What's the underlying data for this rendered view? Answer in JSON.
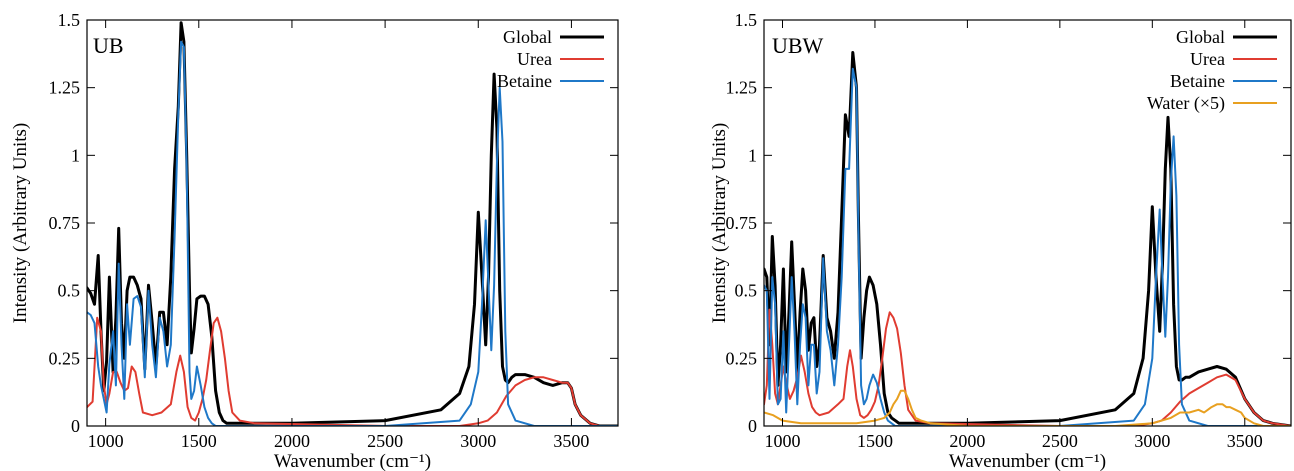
{
  "chart_data": [
    {
      "type": "line",
      "panel_label": "UB",
      "xlabel": "Wavenumber (cm⁻¹)",
      "ylabel": "Intensity (Arbitrary Units)",
      "xlim": [
        900,
        3750
      ],
      "ylim": [
        0,
        1.5
      ],
      "xticks": [
        1000,
        1500,
        2000,
        2500,
        3000,
        3500
      ],
      "xtick_labels": [
        "1000",
        "1500",
        "2000",
        "2500",
        "3000",
        "3500"
      ],
      "yticks": [
        0,
        0.25,
        0.5,
        0.75,
        1,
        1.25,
        1.5
      ],
      "ytick_labels": [
        "0",
        "0.25",
        "0.5",
        "0.75",
        "1",
        "1.25",
        "1.5"
      ],
      "legend_position": "top-right",
      "grid": false,
      "series": [
        {
          "name": "Global",
          "color": "#000000",
          "x": [
            900,
            920,
            940,
            960,
            975,
            990,
            1005,
            1020,
            1040,
            1055,
            1070,
            1085,
            1100,
            1115,
            1130,
            1150,
            1170,
            1190,
            1210,
            1230,
            1250,
            1270,
            1290,
            1310,
            1330,
            1350,
            1370,
            1390,
            1405,
            1420,
            1435,
            1450,
            1460,
            1475,
            1490,
            1510,
            1530,
            1550,
            1570,
            1590,
            1610,
            1630,
            1650,
            1670,
            1700,
            1750,
            1800,
            2000,
            2500,
            2800,
            2900,
            2950,
            2980,
            3000,
            3020,
            3040,
            3055,
            3070,
            3085,
            3100,
            3115,
            3130,
            3145,
            3160,
            3180,
            3200,
            3250,
            3300,
            3350,
            3400,
            3450,
            3480,
            3500,
            3520,
            3550,
            3600,
            3650,
            3750
          ],
          "y": [
            0.51,
            0.49,
            0.45,
            0.63,
            0.35,
            0.13,
            0.24,
            0.55,
            0.2,
            0.4,
            0.73,
            0.38,
            0.25,
            0.5,
            0.55,
            0.55,
            0.52,
            0.47,
            0.21,
            0.52,
            0.38,
            0.22,
            0.42,
            0.42,
            0.3,
            0.55,
            0.95,
            1.18,
            1.49,
            1.42,
            1.0,
            0.5,
            0.27,
            0.36,
            0.47,
            0.48,
            0.48,
            0.45,
            0.33,
            0.13,
            0.05,
            0.02,
            0.01,
            0.01,
            0.01,
            0.01,
            0.01,
            0.01,
            0.02,
            0.06,
            0.12,
            0.22,
            0.45,
            0.79,
            0.55,
            0.3,
            0.55,
            1.0,
            1.3,
            1.1,
            0.5,
            0.22,
            0.17,
            0.16,
            0.18,
            0.19,
            0.19,
            0.18,
            0.16,
            0.15,
            0.16,
            0.16,
            0.14,
            0.08,
            0.04,
            0.01,
            0.0,
            0.0
          ]
        },
        {
          "name": "Urea",
          "color": "#e03c31",
          "x": [
            900,
            930,
            955,
            975,
            990,
            1005,
            1020,
            1040,
            1060,
            1080,
            1100,
            1120,
            1140,
            1160,
            1180,
            1200,
            1250,
            1300,
            1350,
            1380,
            1400,
            1420,
            1440,
            1460,
            1480,
            1500,
            1520,
            1540,
            1560,
            1580,
            1600,
            1620,
            1640,
            1660,
            1680,
            1720,
            1800,
            2500,
            2900,
            3000,
            3050,
            3100,
            3150,
            3200,
            3250,
            3300,
            3350,
            3400,
            3450,
            3480,
            3500,
            3520,
            3550,
            3600,
            3650,
            3750
          ],
          "y": [
            0.07,
            0.09,
            0.4,
            0.35,
            0.15,
            0.08,
            0.12,
            0.2,
            0.2,
            0.16,
            0.13,
            0.14,
            0.22,
            0.2,
            0.12,
            0.05,
            0.04,
            0.05,
            0.08,
            0.2,
            0.26,
            0.2,
            0.07,
            0.03,
            0.02,
            0.05,
            0.1,
            0.17,
            0.28,
            0.38,
            0.4,
            0.35,
            0.25,
            0.13,
            0.05,
            0.02,
            0.01,
            0.0,
            0.0,
            0.01,
            0.02,
            0.05,
            0.11,
            0.15,
            0.17,
            0.18,
            0.18,
            0.17,
            0.16,
            0.16,
            0.14,
            0.08,
            0.04,
            0.01,
            0.0,
            0.0
          ]
        },
        {
          "name": "Betaine",
          "color": "#1f78c8",
          "x": [
            900,
            920,
            940,
            960,
            975,
            990,
            1005,
            1020,
            1040,
            1055,
            1070,
            1085,
            1100,
            1115,
            1130,
            1150,
            1170,
            1190,
            1210,
            1230,
            1250,
            1270,
            1290,
            1310,
            1330,
            1350,
            1370,
            1390,
            1405,
            1420,
            1435,
            1450,
            1460,
            1475,
            1490,
            1510,
            1530,
            1550,
            1570,
            1590,
            1610,
            1650,
            1700,
            1800,
            2500,
            2900,
            2960,
            3000,
            3020,
            3040,
            3055,
            3070,
            3085,
            3100,
            3115,
            3130,
            3145,
            3160,
            3200,
            3300,
            3750
          ],
          "y": [
            0.42,
            0.41,
            0.38,
            0.22,
            0.15,
            0.1,
            0.05,
            0.23,
            0.35,
            0.15,
            0.6,
            0.3,
            0.1,
            0.45,
            0.3,
            0.47,
            0.48,
            0.44,
            0.18,
            0.5,
            0.3,
            0.18,
            0.4,
            0.35,
            0.22,
            0.3,
            0.7,
            1.15,
            1.42,
            1.4,
            0.95,
            0.2,
            0.1,
            0.13,
            0.22,
            0.15,
            0.07,
            0.03,
            0.01,
            0.0,
            0.0,
            0.0,
            0.0,
            0.0,
            0.0,
            0.02,
            0.08,
            0.2,
            0.45,
            0.76,
            0.52,
            0.28,
            0.52,
            0.97,
            1.25,
            1.05,
            0.35,
            0.08,
            0.02,
            0.0,
            0.0
          ]
        }
      ]
    },
    {
      "type": "line",
      "panel_label": "UBW",
      "xlabel": "Wavenumber (cm⁻¹)",
      "ylabel": "Intensity (Arbitrary Units)",
      "xlim": [
        900,
        3750
      ],
      "ylim": [
        0,
        1.5
      ],
      "xticks": [
        1000,
        1500,
        2000,
        2500,
        3000,
        3500
      ],
      "xtick_labels": [
        "1000",
        "1500",
        "2000",
        "2500",
        "3000",
        "3500"
      ],
      "yticks": [
        0,
        0.25,
        0.5,
        0.75,
        1,
        1.25,
        1.5
      ],
      "ytick_labels": [
        "0",
        "0.25",
        "0.5",
        "0.75",
        "1",
        "1.25",
        "1.5"
      ],
      "legend_position": "top-right",
      "grid": false,
      "series": [
        {
          "name": "Global",
          "color": "#000000",
          "x": [
            900,
            915,
            930,
            945,
            960,
            975,
            990,
            1005,
            1020,
            1035,
            1050,
            1065,
            1080,
            1095,
            1110,
            1125,
            1140,
            1155,
            1170,
            1185,
            1200,
            1220,
            1240,
            1260,
            1280,
            1300,
            1320,
            1340,
            1360,
            1380,
            1400,
            1410,
            1425,
            1440,
            1455,
            1470,
            1490,
            1510,
            1530,
            1550,
            1570,
            1590,
            1610,
            1630,
            1650,
            1670,
            1700,
            1750,
            1800,
            2000,
            2500,
            2800,
            2900,
            2950,
            2980,
            3000,
            3020,
            3040,
            3055,
            3070,
            3085,
            3100,
            3115,
            3130,
            3145,
            3160,
            3180,
            3200,
            3250,
            3300,
            3350,
            3400,
            3450,
            3500,
            3550,
            3600,
            3650,
            3750
          ],
          "y": [
            0.58,
            0.55,
            0.3,
            0.7,
            0.52,
            0.15,
            0.3,
            0.58,
            0.2,
            0.42,
            0.68,
            0.45,
            0.2,
            0.42,
            0.58,
            0.5,
            0.28,
            0.38,
            0.4,
            0.22,
            0.3,
            0.63,
            0.4,
            0.35,
            0.25,
            0.42,
            0.78,
            1.15,
            1.07,
            1.38,
            1.25,
            0.8,
            0.25,
            0.4,
            0.5,
            0.55,
            0.52,
            0.45,
            0.3,
            0.12,
            0.05,
            0.03,
            0.02,
            0.01,
            0.01,
            0.01,
            0.01,
            0.01,
            0.01,
            0.01,
            0.02,
            0.06,
            0.12,
            0.25,
            0.5,
            0.81,
            0.55,
            0.35,
            0.6,
            0.95,
            1.14,
            0.95,
            0.45,
            0.22,
            0.17,
            0.17,
            0.18,
            0.18,
            0.2,
            0.21,
            0.22,
            0.21,
            0.18,
            0.1,
            0.05,
            0.02,
            0.01,
            0.0
          ]
        },
        {
          "name": "Urea",
          "color": "#e03c31",
          "x": [
            900,
            915,
            930,
            945,
            960,
            975,
            990,
            1005,
            1020,
            1040,
            1060,
            1080,
            1100,
            1120,
            1140,
            1160,
            1180,
            1200,
            1250,
            1300,
            1330,
            1350,
            1365,
            1380,
            1400,
            1420,
            1440,
            1460,
            1480,
            1500,
            1520,
            1540,
            1560,
            1580,
            1600,
            1620,
            1640,
            1660,
            1680,
            1720,
            1800,
            2500,
            2900,
            3000,
            3050,
            3100,
            3150,
            3200,
            3250,
            3300,
            3350,
            3400,
            3450,
            3500,
            3550,
            3600,
            3650,
            3750
          ],
          "y": [
            0.08,
            0.15,
            0.43,
            0.3,
            0.12,
            0.08,
            0.15,
            0.22,
            0.16,
            0.1,
            0.13,
            0.18,
            0.26,
            0.2,
            0.12,
            0.07,
            0.05,
            0.04,
            0.05,
            0.08,
            0.1,
            0.22,
            0.28,
            0.22,
            0.1,
            0.04,
            0.03,
            0.04,
            0.06,
            0.09,
            0.15,
            0.25,
            0.36,
            0.42,
            0.4,
            0.36,
            0.27,
            0.15,
            0.06,
            0.02,
            0.01,
            0.0,
            0.0,
            0.01,
            0.02,
            0.05,
            0.09,
            0.12,
            0.14,
            0.16,
            0.18,
            0.19,
            0.17,
            0.1,
            0.05,
            0.02,
            0.01,
            0.0
          ]
        },
        {
          "name": "Betaine",
          "color": "#1f78c8",
          "x": [
            900,
            915,
            930,
            945,
            960,
            975,
            990,
            1005,
            1020,
            1035,
            1050,
            1065,
            1080,
            1095,
            1110,
            1125,
            1140,
            1155,
            1170,
            1185,
            1200,
            1220,
            1240,
            1260,
            1280,
            1300,
            1320,
            1340,
            1360,
            1380,
            1400,
            1410,
            1425,
            1440,
            1455,
            1470,
            1490,
            1510,
            1530,
            1550,
            1570,
            1590,
            1610,
            1630,
            1660,
            1700,
            1800,
            2500,
            2900,
            2960,
            3000,
            3020,
            3040,
            3055,
            3070,
            3085,
            3100,
            3115,
            3130,
            3145,
            3160,
            3200,
            3300,
            3750
          ],
          "y": [
            0.52,
            0.5,
            0.1,
            0.55,
            0.45,
            0.08,
            0.1,
            0.35,
            0.05,
            0.3,
            0.55,
            0.35,
            0.08,
            0.3,
            0.45,
            0.4,
            0.15,
            0.3,
            0.3,
            0.12,
            0.2,
            0.62,
            0.35,
            0.28,
            0.15,
            0.3,
            0.55,
            0.95,
            0.95,
            1.32,
            1.25,
            0.75,
            0.15,
            0.08,
            0.1,
            0.15,
            0.19,
            0.16,
            0.1,
            0.05,
            0.02,
            0.01,
            0.0,
            0.0,
            0.0,
            0.0,
            0.0,
            0.0,
            0.02,
            0.08,
            0.25,
            0.55,
            0.8,
            0.55,
            0.33,
            0.55,
            0.9,
            1.07,
            0.85,
            0.3,
            0.08,
            0.02,
            0.0,
            0.0
          ]
        },
        {
          "name": "Water (×5)",
          "color": "#e8a020",
          "x": [
            900,
            950,
            1000,
            1100,
            1200,
            1300,
            1400,
            1500,
            1550,
            1580,
            1600,
            1620,
            1640,
            1660,
            1680,
            1700,
            1720,
            1750,
            1800,
            2000,
            2500,
            2800,
            3000,
            3100,
            3150,
            3200,
            3250,
            3280,
            3300,
            3320,
            3350,
            3380,
            3400,
            3420,
            3450,
            3480,
            3500,
            3550,
            3600,
            3650,
            3750
          ],
          "y": [
            0.05,
            0.04,
            0.02,
            0.01,
            0.01,
            0.01,
            0.01,
            0.02,
            0.03,
            0.05,
            0.08,
            0.1,
            0.13,
            0.13,
            0.1,
            0.06,
            0.03,
            0.02,
            0.01,
            0.0,
            0.0,
            0.0,
            0.01,
            0.03,
            0.05,
            0.05,
            0.06,
            0.05,
            0.06,
            0.07,
            0.08,
            0.08,
            0.07,
            0.07,
            0.06,
            0.05,
            0.03,
            0.01,
            0.0,
            0.0,
            0.0
          ]
        }
      ]
    }
  ]
}
